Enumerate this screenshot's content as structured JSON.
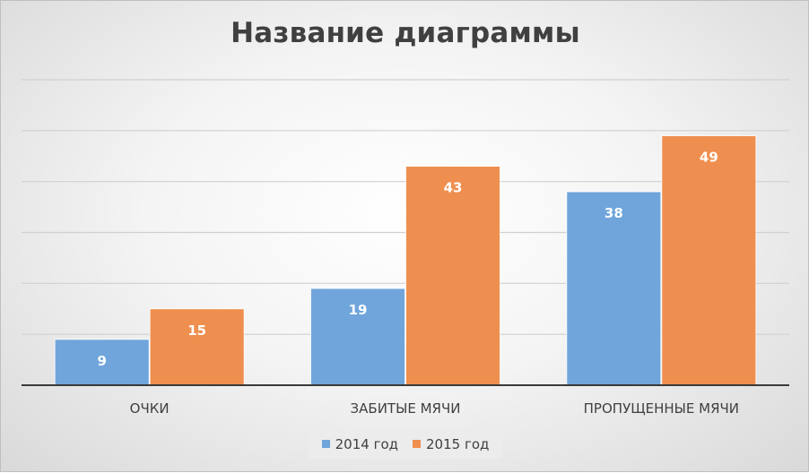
{
  "chart_data": {
    "type": "bar",
    "title": "Название диаграммы",
    "categories": [
      "ОЧКИ",
      "ЗАБИТЫЕ МЯЧИ",
      "ПРОПУЩЕННЫЕ МЯЧИ"
    ],
    "series": [
      {
        "name": "2014 год",
        "values": [
          9,
          19,
          38
        ],
        "color": "#6fa5db"
      },
      {
        "name": "2015 год",
        "values": [
          15,
          43,
          49
        ],
        "color": "#ef8f4f"
      }
    ],
    "ylim": [
      0,
      60
    ],
    "grid": true,
    "legend": "bottom",
    "data_labels": true
  }
}
